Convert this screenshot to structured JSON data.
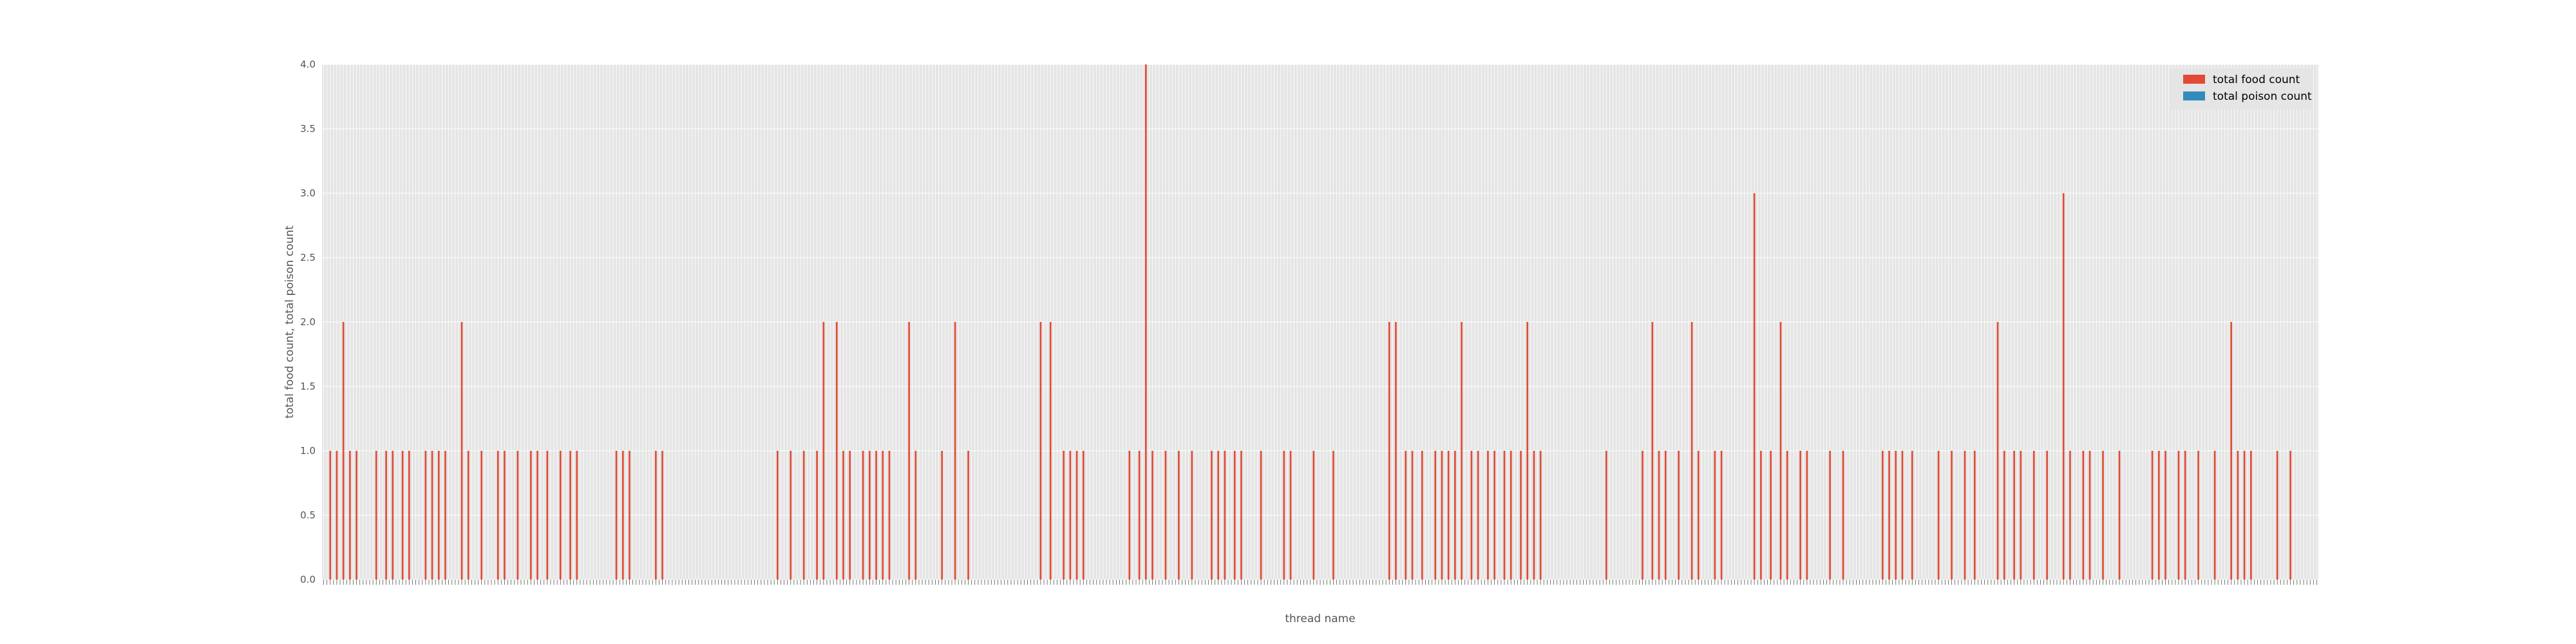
{
  "colors": {
    "plot_background": "#E5E5E5",
    "grid": "#FFFFFF",
    "food_series": "#E24A33",
    "poison_series": "#348ABD",
    "text": "#555555"
  },
  "chart_data": {
    "type": "bar",
    "title": "",
    "xlabel": "thread name",
    "ylabel": "total food count, total poison count",
    "ylim": [
      0,
      4.0
    ],
    "yticks": [
      "0.0",
      "0.5",
      "1.0",
      "1.5",
      "2.0",
      "2.5",
      "3.0",
      "3.5",
      "4.0"
    ],
    "grid": true,
    "legend_position": "top-right",
    "x_tick_labels_note": "dense rotated category labels along the x axis are not legible",
    "series": [
      {
        "name": "total food count",
        "color": "#E24A33",
        "values": [
          0,
          0,
          1,
          0,
          1,
          0,
          2,
          0,
          1,
          0,
          1,
          0,
          0,
          0,
          0,
          0,
          1,
          0,
          0,
          1,
          0,
          1,
          0,
          0,
          1,
          0,
          1,
          0,
          0,
          0,
          0,
          1,
          0,
          1,
          0,
          1,
          0,
          1,
          0,
          0,
          0,
          0,
          2,
          0,
          1,
          0,
          0,
          0,
          1,
          0,
          0,
          0,
          0,
          1,
          0,
          1,
          0,
          0,
          0,
          1,
          0,
          0,
          0,
          1,
          0,
          1,
          0,
          0,
          1,
          0,
          0,
          0,
          1,
          0,
          0,
          1,
          0,
          1,
          0,
          0,
          0,
          0,
          0,
          0,
          0,
          0,
          0,
          0,
          0,
          1,
          0,
          1,
          0,
          1,
          0,
          0,
          0,
          0,
          0,
          0,
          0,
          1,
          0,
          1,
          0,
          0,
          0,
          0,
          0,
          0,
          0,
          0,
          0,
          0,
          0,
          0,
          0,
          0,
          0,
          0,
          0,
          0,
          0,
          0,
          0,
          0,
          0,
          0,
          0,
          0,
          0,
          0,
          0,
          0,
          0,
          0,
          0,
          0,
          1,
          0,
          0,
          0,
          1,
          0,
          0,
          0,
          1,
          0,
          0,
          0,
          1,
          0,
          2,
          0,
          0,
          0,
          2,
          0,
          1,
          0,
          1,
          0,
          0,
          0,
          1,
          0,
          1,
          0,
          1,
          0,
          1,
          0,
          1,
          0,
          0,
          0,
          0,
          0,
          2,
          0,
          1,
          0,
          0,
          0,
          0,
          0,
          0,
          0,
          1,
          0,
          0,
          0,
          2,
          0,
          0,
          0,
          1,
          0,
          0,
          0,
          0,
          0,
          0,
          0,
          0,
          0,
          0,
          0,
          0,
          0,
          0,
          0,
          0,
          0,
          0,
          0,
          0,
          0,
          2,
          0,
          0,
          2,
          0,
          0,
          0,
          1,
          0,
          1,
          0,
          1,
          0,
          1,
          0,
          0,
          0,
          0,
          0,
          0,
          0,
          0,
          0,
          0,
          0,
          0,
          0,
          1,
          0,
          0,
          1,
          0,
          4,
          0,
          1,
          0,
          0,
          0,
          1,
          0,
          0,
          0,
          1,
          0,
          0,
          0,
          1,
          0,
          0,
          0,
          0,
          0,
          1,
          0,
          1,
          0,
          1,
          0,
          0,
          1,
          0,
          1,
          0,
          0,
          0,
          0,
          0,
          1,
          0,
          0,
          0,
          0,
          0,
          0,
          1,
          0,
          1,
          0,
          0,
          0,
          0,
          0,
          0,
          1,
          0,
          0,
          0,
          0,
          0,
          1,
          0,
          0,
          0,
          0,
          0,
          0,
          0,
          0,
          0,
          0,
          0,
          0,
          0,
          0,
          0,
          0,
          2,
          0,
          2,
          0,
          0,
          1,
          0,
          1,
          0,
          0,
          1,
          0,
          0,
          0,
          1,
          0,
          1,
          0,
          1,
          0,
          1,
          0,
          2,
          0,
          0,
          1,
          0,
          1,
          0,
          0,
          1,
          0,
          1,
          0,
          0,
          1,
          0,
          1,
          0,
          0,
          1,
          0,
          2,
          0,
          1,
          0,
          1,
          0,
          0,
          0,
          0,
          0,
          0,
          0,
          0,
          0,
          0,
          0,
          0,
          0,
          0,
          0,
          0,
          0,
          0,
          0,
          1,
          0,
          0,
          0,
          0,
          0,
          0,
          0,
          0,
          0,
          0,
          1,
          0,
          0,
          2,
          0,
          1,
          0,
          1,
          0,
          0,
          0,
          1,
          0,
          0,
          0,
          2,
          0,
          1,
          0,
          0,
          0,
          0,
          1,
          0,
          1,
          0,
          0,
          0,
          0,
          0,
          0,
          0,
          0,
          0,
          3,
          0,
          1,
          0,
          0,
          1,
          0,
          0,
          2,
          0,
          1,
          0,
          0,
          0,
          1,
          0,
          1,
          0,
          0,
          0,
          0,
          0,
          0,
          1,
          0,
          0,
          0,
          1,
          0,
          0,
          0,
          0,
          0,
          0,
          0,
          0,
          0,
          0,
          0,
          1,
          0,
          1,
          0,
          1,
          0,
          1,
          0,
          0,
          1,
          0,
          0,
          0,
          0,
          0,
          0,
          0,
          1,
          0,
          0,
          0,
          1,
          0,
          0,
          0,
          1,
          0,
          0,
          1,
          0,
          0,
          0,
          0,
          0,
          0,
          2,
          0,
          1,
          0,
          0,
          1,
          0,
          1,
          0,
          0,
          0,
          1,
          0,
          0,
          0,
          1,
          0,
          0,
          0,
          0,
          3,
          0,
          1,
          0,
          0,
          0,
          1,
          0,
          1,
          0,
          0,
          0,
          1,
          0,
          0,
          0,
          0,
          1,
          0,
          0,
          0,
          0,
          0,
          0,
          0,
          0,
          0,
          1,
          0,
          1,
          0,
          1,
          0,
          0,
          0,
          1,
          0,
          1,
          0,
          0,
          0,
          1,
          0,
          0,
          0,
          0,
          1,
          0,
          0,
          0,
          0,
          2,
          0,
          1,
          0,
          1,
          0,
          1,
          0,
          0,
          0,
          0,
          0,
          0,
          0,
          1,
          0,
          0,
          0,
          1,
          0,
          0,
          0,
          0,
          0,
          0,
          0,
          0
        ]
      },
      {
        "name": "total poison count",
        "color": "#348ABD",
        "values": []
      }
    ]
  }
}
